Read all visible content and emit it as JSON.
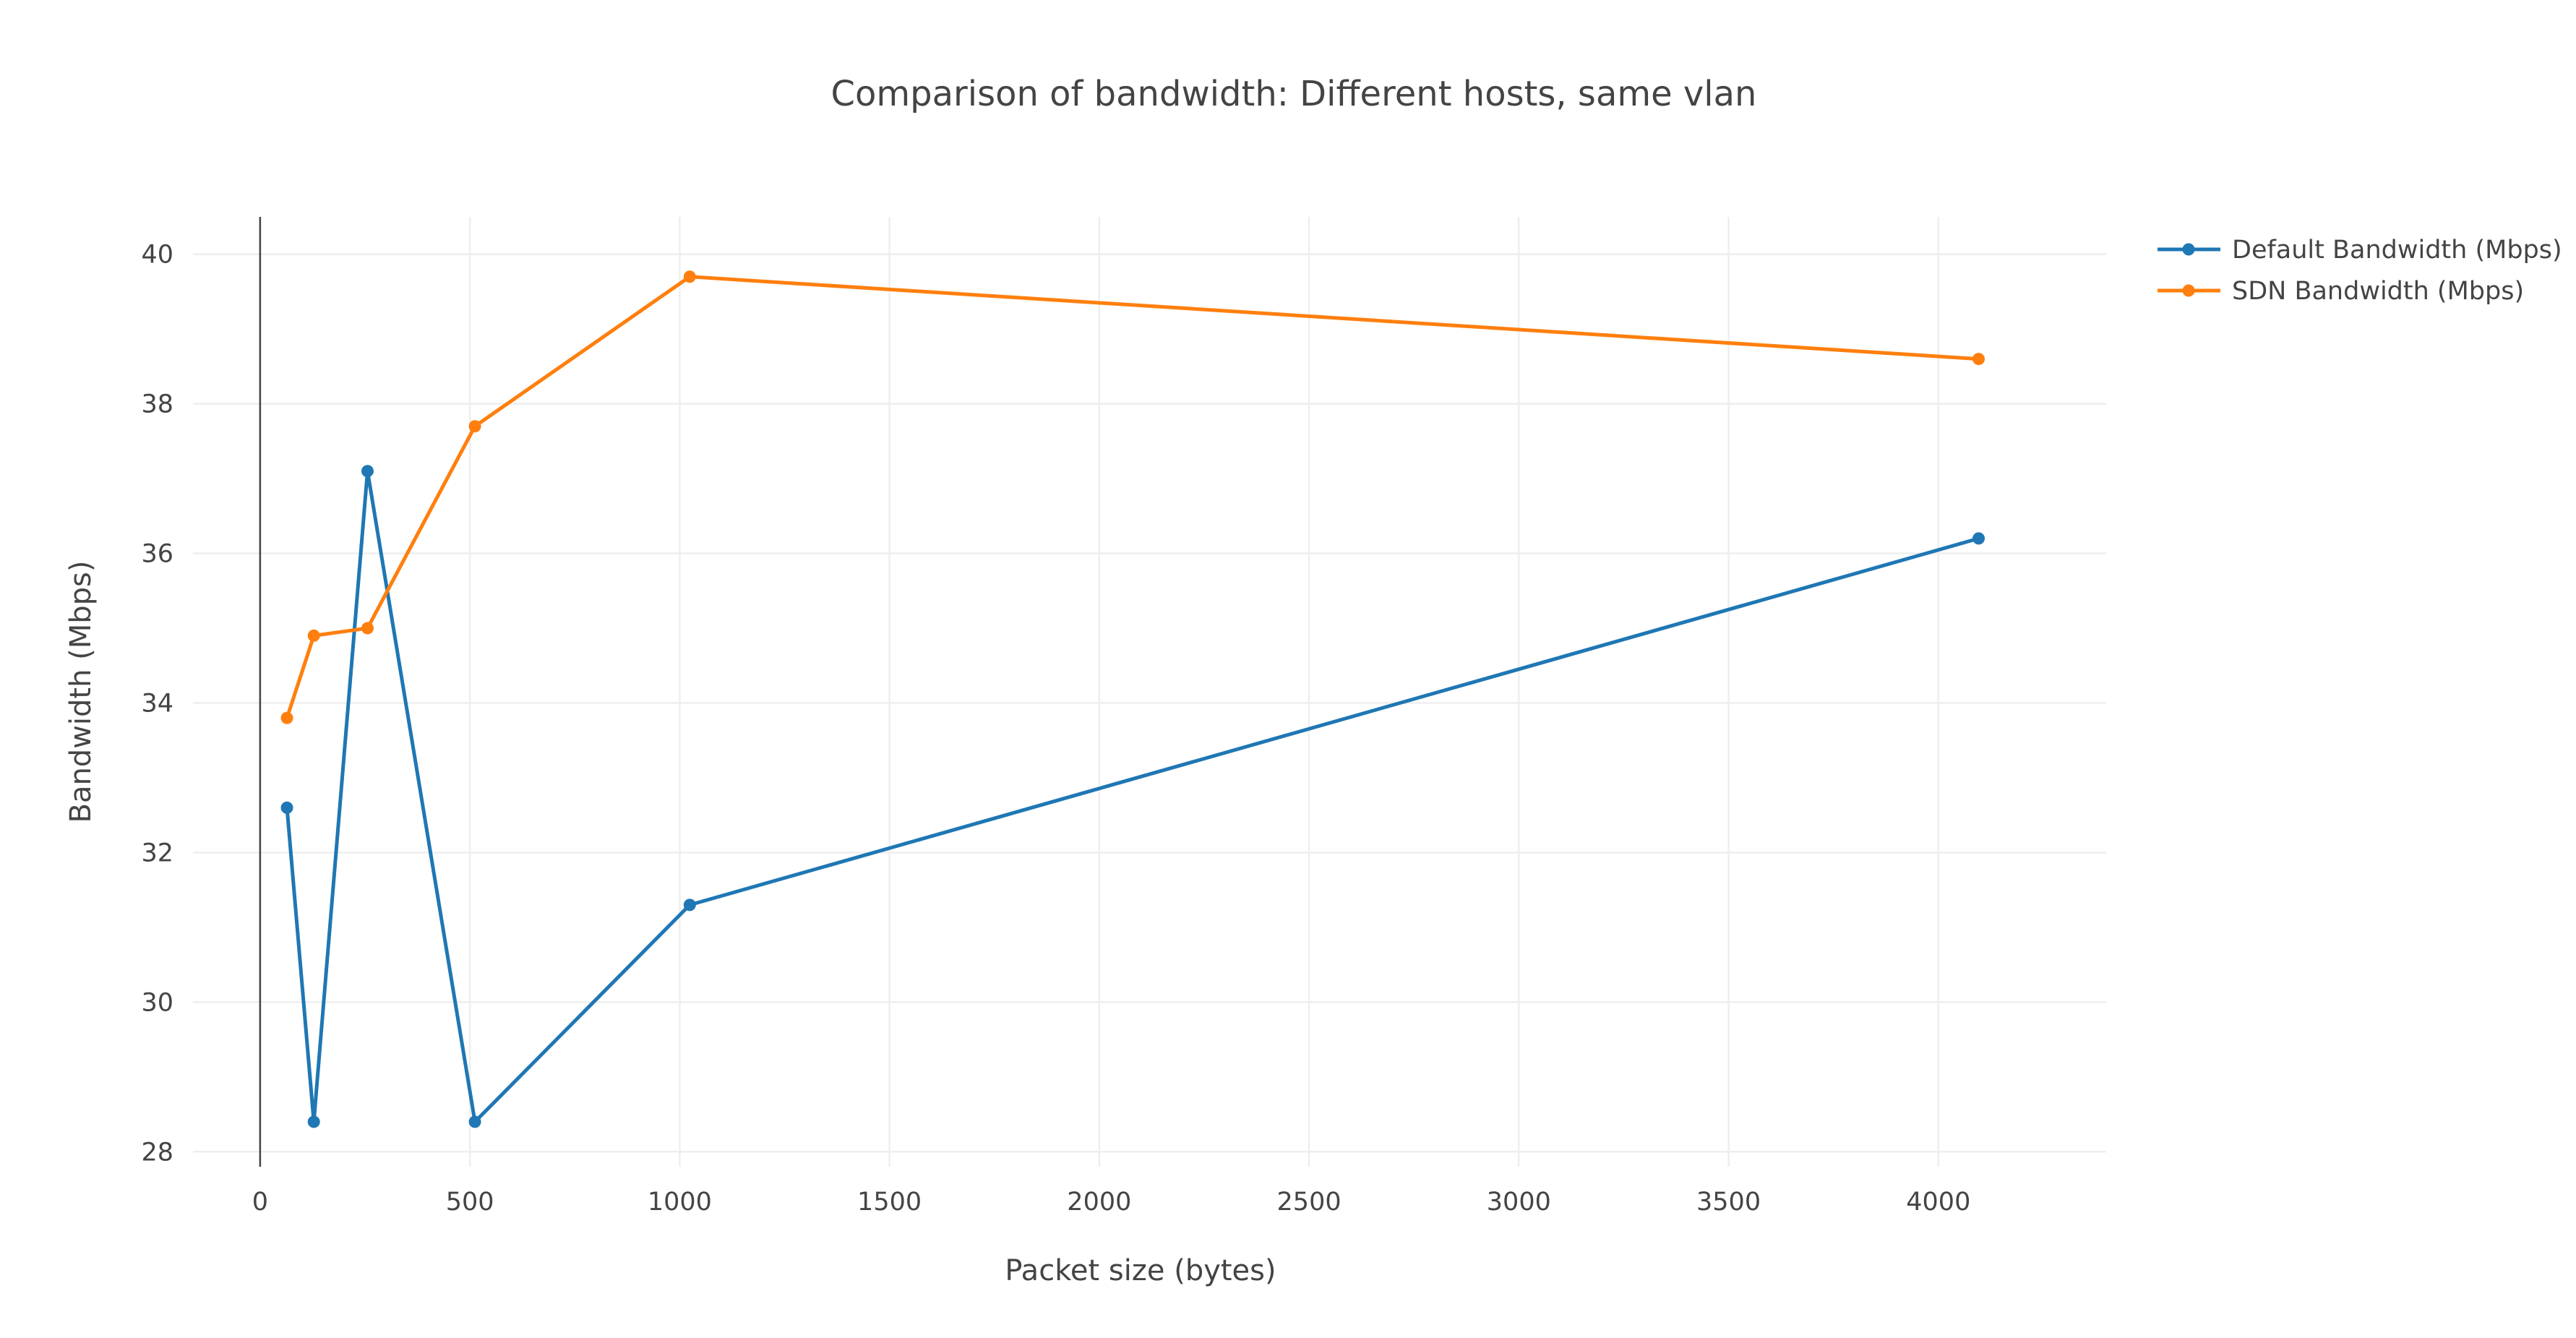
{
  "chart_data": {
    "type": "line",
    "title": "Comparison of bandwidth: Different hosts, same vlan",
    "xlabel": "Packet size (bytes)",
    "ylabel": "Bandwidth (Mbps)",
    "xlim": [
      -160,
      4400
    ],
    "ylim": [
      27.8,
      40.5
    ],
    "xticks": [
      0,
      500,
      1000,
      1500,
      2000,
      2500,
      3000,
      3500,
      4000
    ],
    "xtick_labels": [
      "0",
      "500",
      "1000",
      "1500",
      "2000",
      "2500",
      "3000",
      "3500",
      "4000"
    ],
    "yticks": [
      28,
      30,
      32,
      34,
      36,
      38,
      40
    ],
    "ytick_labels": [
      "28",
      "30",
      "32",
      "34",
      "36",
      "38",
      "40"
    ],
    "grid": true,
    "legend_position": "top-right",
    "series": [
      {
        "name": "Default Bandwidth (Mbps)",
        "color": "#1f77b4",
        "x": [
          64,
          128,
          256,
          512,
          1024,
          4096
        ],
        "y": [
          32.6,
          28.4,
          37.1,
          28.4,
          31.3,
          36.2
        ]
      },
      {
        "name": "SDN Bandwidth (Mbps)",
        "color": "#ff7f0e",
        "x": [
          64,
          128,
          256,
          512,
          1024,
          4096
        ],
        "y": [
          33.8,
          34.9,
          35.0,
          37.7,
          39.7,
          38.6
        ]
      }
    ]
  }
}
